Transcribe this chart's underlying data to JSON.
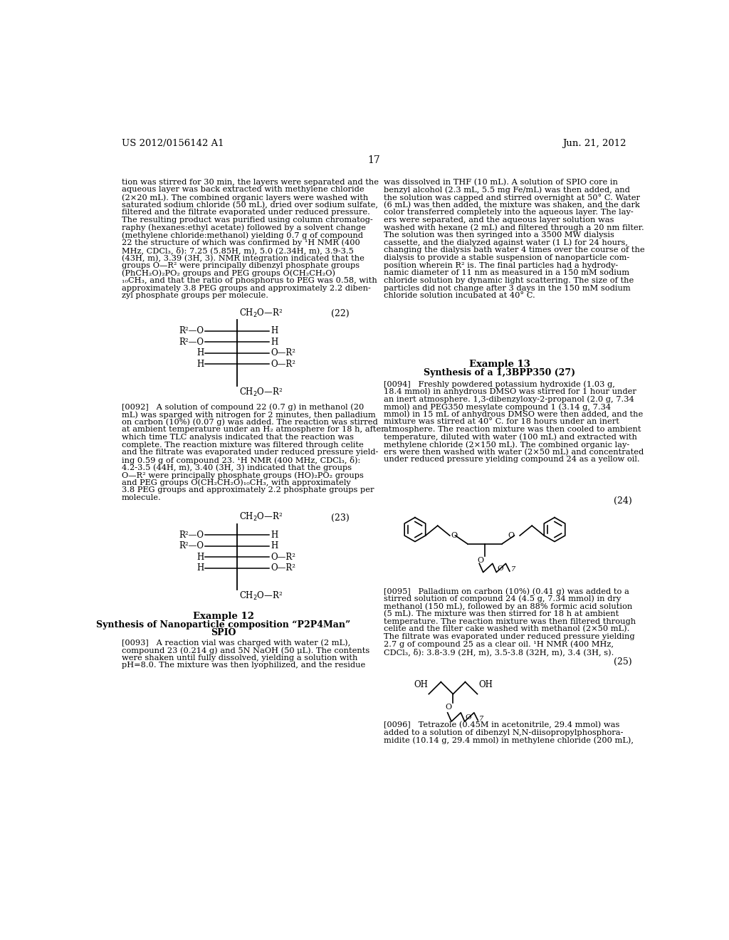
{
  "background_color": "#ffffff",
  "page_number": "17",
  "header_left": "US 2012/0156142 A1",
  "header_right": "Jun. 21, 2012",
  "left_col_lines": [
    "tion was stirred for 30 min, the layers were separated and the",
    "aqueous layer was back extracted with methylene chloride",
    "(2×20 mL). The combined organic layers were washed with",
    "saturated sodium chloride (50 mL), dried over sodium sulfate,",
    "filtered and the filtrate evaporated under reduced pressure.",
    "The resulting product was purified using column chromatog-",
    "raphy (hexanes:ethyl acetate) followed by a solvent change",
    "(methylene chloride:methanol) yielding 0.7 g of compound",
    "22 the structure of which was confirmed by ¹H NMR (400",
    "MHz, CDCl₃, δ): 7.25 (5.85H, m), 5.0 (2.34H, m), 3.9-3.5",
    "(43H, m), 3.39 (3H, 3). NMR integration indicated that the",
    "groups O—R² were principally dibenzyl phosphate groups",
    "(PhCH₂O)₂PO₂ groups and PEG groups O(CH₂CH₂O)",
    "₁₀CH₃, and that the ratio of phosphorus to PEG was 0.58, with",
    "approximately 3.8 PEG groups and approximately 2.2 diben-",
    "zyl phosphate groups per molecule."
  ],
  "right_col_lines": [
    "was dissolved in THF (10 mL). A solution of SPIO core in",
    "benzyl alcohol (2.3 mL, 5.5 mg Fe/mL) was then added, and",
    "the solution was capped and stirred overnight at 50° C. Water",
    "(6 mL) was then added, the mixture was shaken, and the dark",
    "color transferred completely into the aqueous layer. The lay-",
    "ers were separated, and the aqueous layer solution was",
    "washed with hexane (2 mL) and filtered through a 20 nm filter.",
    "The solution was then syringed into a 3500 MW dialysis",
    "cassette, and the dialyzed against water (1 L) for 24 hours,",
    "changing the dialysis bath water 4 times over the course of the",
    "dialysis to provide a stable suspension of nanoparticle com-",
    "position wherein R² is. The final particles had a hydrody-",
    "namic diameter of 11 nm as measured in a 150 mM sodium",
    "chloride solution by dynamic light scattering. The size of the",
    "particles did not change after 3 days in the 150 mM sodium",
    "chloride solution incubated at 40° C."
  ],
  "para92_lines": [
    "[0092]   A solution of compound 22 (0.7 g) in methanol (20",
    "mL) was sparged with nitrogen for 2 minutes, then palladium",
    "on carbon (10%) (0.07 g) was added. The reaction was stirred",
    "at ambient temperature under an H₂ atmosphere for 18 h, after",
    "which time TLC analysis indicated that the reaction was",
    "complete. The reaction mixture was filtered through celite",
    "and the filtrate was evaporated under reduced pressure yield-",
    "ing 0.59 g of compound 23. ¹H NMR (400 MHz, CDCl₃, δ):",
    "4.2-3.5 (44H, m), 3.40 (3H, 3) indicated that the groups",
    "O—R² were principally phosphate groups (HO)₂PO₂ groups",
    "and PEG groups O(CH₂CH₂O)₁₀CH₃, with approximately",
    "3.8 PEG groups and approximately 2.2 phosphate groups per",
    "molecule."
  ],
  "para93_lines": [
    "[0093]   A reaction vial was charged with water (2 mL),",
    "compound 23 (0.214 g) and 5N NaOH (50 μL). The contents",
    "were shaken until fully dissolved, yielding a solution with",
    "pH=8.0. The mixture was then lyophilized, and the residue"
  ],
  "para94_lines": [
    "[0094]   Freshly powdered potassium hydroxide (1.03 g,",
    "18.4 mmol) in anhydrous DMSO was stirred for 1 hour under",
    "an inert atmosphere. 1,3-dibenzyloxy-2-propanol (2.0 g, 7.34",
    "mmol) and PEG350 mesylate compound 1 (3.14 g, 7.34",
    "mmol) in 15 mL of anhydrous DMSO were then added, and the",
    "mixture was stirred at 40° C. for 18 hours under an inert",
    "atmosphere. The reaction mixture was then cooled to ambient",
    "temperature, diluted with water (100 mL) and extracted with",
    "methylene chloride (2×150 mL). The combined organic lay-",
    "ers were then washed with water (2×50 mL) and concentrated",
    "under reduced pressure yielding compound 24 as a yellow oil."
  ],
  "para95_lines": [
    "[0095]   Palladium on carbon (10%) (0.41 g) was added to a",
    "stirred solution of compound 24 (4.5 g, 7.34 mmol) in dry",
    "methanol (150 mL), followed by an 88% formic acid solution",
    "(5 mL). The mixture was then stirred for 18 h at ambient",
    "temperature. The reaction mixture was then filtered through",
    "celite and the filter cake washed with methanol (2×50 mL).",
    "The filtrate was evaporated under reduced pressure yielding",
    "2.7 g of compound 25 as a clear oil. ¹H NMR (400 MHz,",
    "CDCl₃, δ): 3.8-3.9 (2H, m), 3.5-3.8 (32H, m), 3.4 (3H, s)."
  ],
  "para96_lines": [
    "[0096]   Tetrazole (0.45M in acetonitrile, 29.4 mmol) was",
    "added to a solution of dibenzyl N,N-diisopropylphosphora-",
    "midite (10.14 g, 29.4 mmol) in methylene chloride (200 mL),"
  ],
  "example12_title": "Example 12",
  "example12_sub": "Synthesis of Nanoparticle composition “P2P4Man”",
  "example12_sub2": "SPIO",
  "example13_title": "Example 13",
  "example13_sub": "Synthesis of a 1,3BPP350 (27)"
}
